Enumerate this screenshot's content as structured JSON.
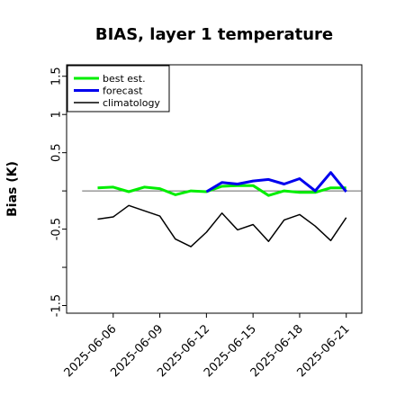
{
  "chart_data": {
    "type": "line",
    "title": "BIAS, layer 1 temperature",
    "xlabel": "",
    "ylabel": "Bias (K)",
    "ylim": [
      -1.6,
      1.65
    ],
    "yticks": [
      -1.5,
      -0.5,
      0.5,
      1.0,
      1.5
    ],
    "yticks_unlabeled": [
      -1.0,
      0.0
    ],
    "xlim": [
      "2025-06-03",
      "2025-06-22"
    ],
    "xticks": [
      "2025-06-06",
      "2025-06-09",
      "2025-06-12",
      "2025-06-15",
      "2025-06-18",
      "2025-06-21"
    ],
    "xtick_colors": [
      "#000000",
      "#000000",
      "#228b22",
      "#000000",
      "#000000",
      "#000000"
    ],
    "reference_line": 0.0,
    "grid": false,
    "legend_position": "top-left",
    "series": [
      {
        "name": "best est.",
        "color": "#00ee00",
        "x": [
          "2025-06-05",
          "2025-06-06",
          "2025-06-07",
          "2025-06-08",
          "2025-06-09",
          "2025-06-10",
          "2025-06-11",
          "2025-06-12",
          "2025-06-13",
          "2025-06-14",
          "2025-06-15",
          "2025-06-16",
          "2025-06-17",
          "2025-06-18",
          "2025-06-19",
          "2025-06-20",
          "2025-06-21"
        ],
        "y": [
          0.04,
          0.05,
          -0.01,
          0.05,
          0.03,
          -0.05,
          0.0,
          -0.01,
          0.06,
          0.07,
          0.07,
          -0.06,
          -0.0,
          -0.02,
          -0.02,
          0.04,
          0.04
        ]
      },
      {
        "name": "forecast",
        "color": "#0000ee",
        "x": [
          "2025-06-12",
          "2025-06-13",
          "2025-06-14",
          "2025-06-15",
          "2025-06-16",
          "2025-06-17",
          "2025-06-18",
          "2025-06-19",
          "2025-06-20",
          "2025-06-21"
        ],
        "y": [
          -0.01,
          0.11,
          0.09,
          0.13,
          0.15,
          0.09,
          0.16,
          0.0,
          0.24,
          -0.01
        ]
      },
      {
        "name": "climatology",
        "color": "#000000",
        "x": [
          "2025-06-05",
          "2025-06-06",
          "2025-06-07",
          "2025-06-08",
          "2025-06-09",
          "2025-06-10",
          "2025-06-11",
          "2025-06-12",
          "2025-06-13",
          "2025-06-14",
          "2025-06-15",
          "2025-06-16",
          "2025-06-17",
          "2025-06-18",
          "2025-06-19",
          "2025-06-20",
          "2025-06-21"
        ],
        "y": [
          -0.37,
          -0.34,
          -0.19,
          -0.26,
          -0.33,
          -0.63,
          -0.73,
          -0.54,
          -0.29,
          -0.51,
          -0.44,
          -0.66,
          -0.38,
          -0.31,
          -0.46,
          -0.65,
          -0.35
        ]
      }
    ]
  }
}
